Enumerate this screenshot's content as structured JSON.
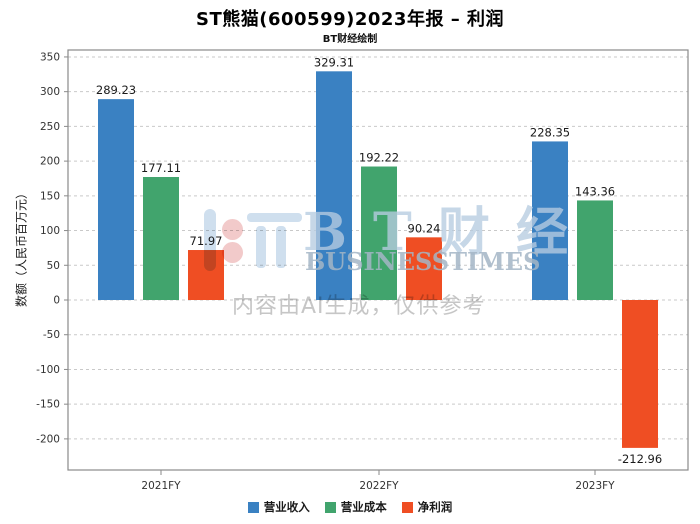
{
  "page": {
    "title": "ST熊猫(600599)2023年报 – 利润",
    "subtitle": "BT财经绘制"
  },
  "watermark": {
    "brand_cn": "B T 财 经",
    "brand_en": "BUSINESSTIMES",
    "disclaimer": "内容由AI生成，仅供参考"
  },
  "chart_data": {
    "type": "bar",
    "title": "ST熊猫(600599)2023年报 – 利润",
    "subtitle": "BT财经绘制",
    "categories": [
      "2021FY",
      "2022FY",
      "2023FY"
    ],
    "series": [
      {
        "name": "营业收入",
        "color": "#3a81c2",
        "values": [
          289.23,
          329.31,
          228.35
        ]
      },
      {
        "name": "营业成本",
        "color": "#41a46d",
        "values": [
          177.11,
          192.22,
          143.36
        ]
      },
      {
        "name": "净利润",
        "color": "#ef4e23",
        "values": [
          71.97,
          90.24,
          -212.96
        ]
      }
    ],
    "xlabel": "",
    "ylabel": "数额（人民币百万元）",
    "yticks": [
      350,
      300,
      250,
      200,
      150,
      100,
      50,
      0,
      -50,
      -100,
      -150,
      -200
    ],
    "ylim": [
      -244.8,
      360
    ],
    "grid": true,
    "legend_position": "bottom"
  },
  "colors": {
    "grid": "#c9c9c9",
    "axis_border": "#8a8a8a",
    "tick_text": "#333333",
    "value_text": "#1a1a1a"
  }
}
